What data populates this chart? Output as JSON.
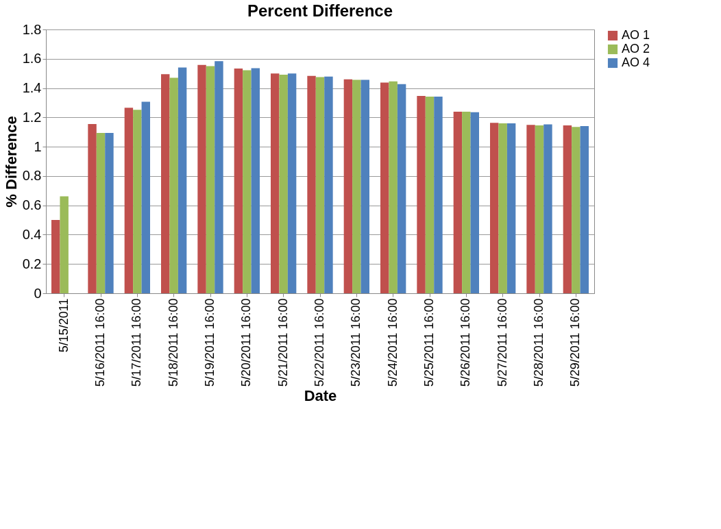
{
  "chart_data": {
    "type": "bar",
    "title": "Percent Difference",
    "xlabel": "Date",
    "ylabel": "% Difference",
    "categories": [
      "5/15/2011",
      "5/16/2011 16:00",
      "5/17/2011 16:00",
      "5/18/2011 16:00",
      "5/19/2011 16:00",
      "5/20/2011 16:00",
      "5/21/2011 16:00",
      "5/22/2011 16:00",
      "5/23/2011 16:00",
      "5/24/2011 16:00",
      "5/25/2011 16:00",
      "5/26/2011 16:00",
      "5/27/2011 16:00",
      "5/28/2011 16:00",
      "5/29/2011 16:00"
    ],
    "series": [
      {
        "name": "AO 1",
        "color": "#c0504d",
        "values": [
          0.5,
          1.155,
          1.266,
          1.495,
          1.558,
          1.533,
          1.5,
          1.483,
          1.46,
          1.438,
          1.347,
          1.239,
          1.163,
          1.149,
          1.146
        ]
      },
      {
        "name": "AO 2",
        "color": "#9bbb59",
        "values": [
          0.662,
          1.094,
          1.252,
          1.47,
          1.55,
          1.522,
          1.492,
          1.475,
          1.456,
          1.446,
          1.342,
          1.239,
          1.16,
          1.146,
          1.135
        ]
      },
      {
        "name": "AO 4",
        "color": "#4f81bd",
        "values": [
          null,
          1.094,
          1.307,
          1.541,
          1.584,
          1.536,
          1.5,
          1.478,
          1.456,
          1.427,
          1.342,
          1.236,
          1.16,
          1.152,
          1.141
        ]
      }
    ],
    "ylim": [
      0,
      1.8
    ],
    "yticks": [
      0,
      0.2,
      0.4,
      0.6,
      0.8,
      1,
      1.2,
      1.4,
      1.6,
      1.8
    ],
    "grid": "y",
    "legend": "right"
  }
}
